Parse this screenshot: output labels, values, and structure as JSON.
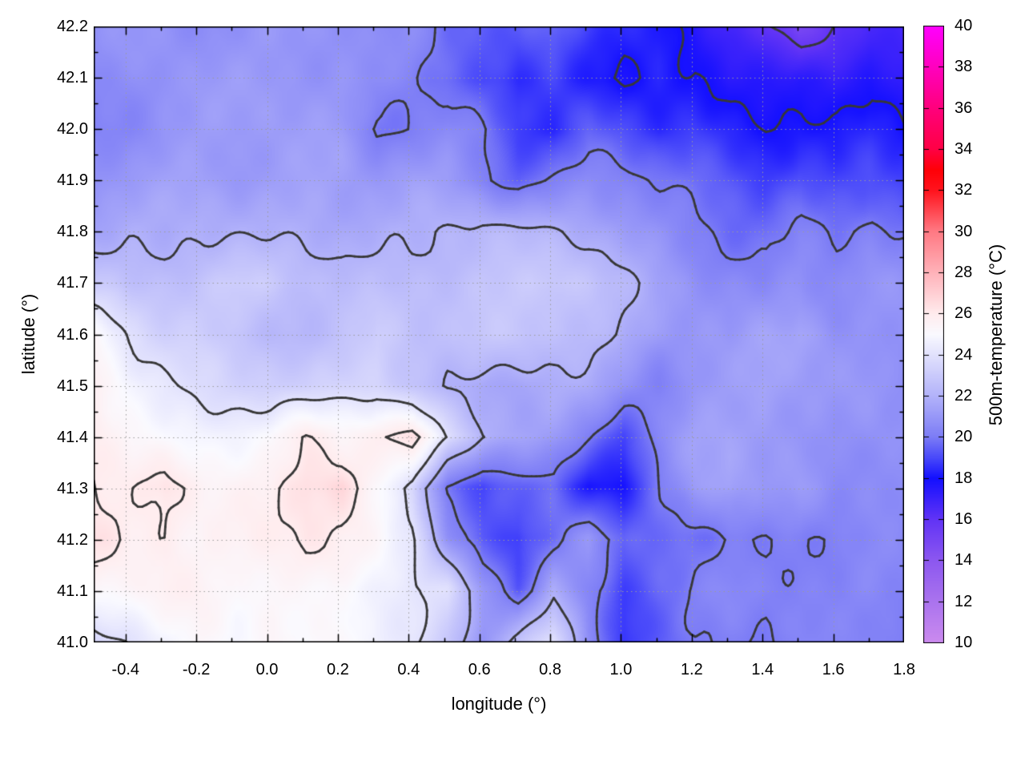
{
  "figure": {
    "xlabel": "longitude (°)",
    "ylabel": "latitude (°)",
    "colorbar_label": "500m-temperature (°C)"
  },
  "chart_data": {
    "type": "heatmap",
    "title": "",
    "xlabel": "longitude (°)",
    "ylabel": "latitude (°)",
    "colorbar_label": "500m-temperature (°C)",
    "xlim": [
      -0.49,
      1.8
    ],
    "ylim": [
      41.0,
      42.2
    ],
    "grid_on": true,
    "x_tick_values": [
      -0.4,
      -0.2,
      0.0,
      0.2,
      0.4,
      0.6,
      0.8,
      1.0,
      1.2,
      1.4,
      1.6,
      1.8
    ],
    "x_tick_labels": [
      "-0.4",
      "-0.2",
      "0.0",
      "0.2",
      "0.4",
      "0.6",
      "0.8",
      "1.0",
      "1.2",
      "1.4",
      "1.6",
      "1.8"
    ],
    "x_minor_step": 0.1,
    "y_tick_values": [
      41.0,
      41.1,
      41.2,
      41.3,
      41.4,
      41.5,
      41.6,
      41.7,
      41.8,
      41.9,
      42.0,
      42.1,
      42.2
    ],
    "y_tick_labels": [
      "41.0",
      "41.1",
      "41.2",
      "41.3",
      "41.4",
      "41.5",
      "41.6",
      "41.7",
      "41.8",
      "41.9",
      "42.0",
      "42.1",
      "42.2"
    ],
    "y_minor_step": 0.05,
    "colorbar": {
      "min": 10,
      "max": 40,
      "tick_values": [
        10,
        12,
        14,
        16,
        18,
        20,
        22,
        24,
        26,
        28,
        30,
        32,
        34,
        36,
        38,
        40
      ],
      "tick_labels": [
        "10",
        "12",
        "14",
        "16",
        "18",
        "20",
        "22",
        "24",
        "26",
        "28",
        "30",
        "32",
        "34",
        "36",
        "38",
        "40"
      ],
      "palette_stops": [
        {
          "t": 10,
          "color": "#cc8bee"
        },
        {
          "t": 12,
          "color": "#ab74ee"
        },
        {
          "t": 14,
          "color": "#8d58f0"
        },
        {
          "t": 16,
          "color": "#6234f6"
        },
        {
          "t": 18,
          "color": "#1410ff"
        },
        {
          "t": 19,
          "color": "#4a4afa"
        },
        {
          "t": 20,
          "color": "#7d7df6"
        },
        {
          "t": 22,
          "color": "#b3b3fa"
        },
        {
          "t": 24,
          "color": "#e2e2fd"
        },
        {
          "t": 25,
          "color": "#fafaff"
        },
        {
          "t": 26,
          "color": "#ffecee"
        },
        {
          "t": 28,
          "color": "#ffb3ba"
        },
        {
          "t": 30,
          "color": "#ff7a84"
        },
        {
          "t": 32,
          "color": "#ff141e"
        },
        {
          "t": 33,
          "color": "#ff0008"
        },
        {
          "t": 34,
          "color": "#ff0045"
        },
        {
          "t": 36,
          "color": "#ff007d"
        },
        {
          "t": 38,
          "color": "#ff00bf"
        },
        {
          "t": 40,
          "color": "#ff00ff"
        }
      ]
    },
    "contour_levels": [
      16,
      18,
      20,
      22,
      24,
      26
    ],
    "contour_color": "#383838",
    "grid_line_color": "#9a9a9a",
    "grid": {
      "lon": [
        -0.49,
        -0.39,
        -0.29,
        -0.19,
        -0.09,
        0.01,
        0.11,
        0.21,
        0.31,
        0.41,
        0.51,
        0.61,
        0.71,
        0.81,
        0.91,
        1.01,
        1.11,
        1.21,
        1.31,
        1.41,
        1.51,
        1.61,
        1.71,
        1.81
      ],
      "lat": [
        42.2,
        42.1,
        42.0,
        41.9,
        41.8,
        41.7,
        41.6,
        41.5,
        41.4,
        41.3,
        41.2,
        41.1,
        41.0
      ],
      "temperature": [
        [
          20.6,
          20.8,
          20.8,
          20.7,
          20.8,
          21.0,
          21.0,
          20.8,
          20.3,
          20.5,
          19.8,
          19.4,
          19.2,
          19.7,
          18.9,
          18.3,
          18.1,
          17.5,
          16.8,
          16.2,
          15.0,
          16.2,
          16.9,
          16.5
        ],
        [
          20.4,
          20.6,
          20.9,
          20.9,
          21.0,
          21.1,
          21.0,
          20.9,
          20.6,
          20.3,
          19.6,
          18.8,
          18.4,
          19.0,
          18.3,
          17.8,
          18.4,
          18.2,
          17.4,
          17.2,
          17.5,
          17.3,
          17.6,
          17.3
        ],
        [
          20.2,
          20.5,
          21.0,
          21.1,
          21.1,
          21.2,
          21.1,
          21.0,
          19.9,
          20.2,
          20.6,
          20.1,
          18.9,
          18.4,
          19.3,
          19.0,
          18.6,
          18.9,
          18.4,
          18.1,
          18.3,
          18.0,
          18.3,
          18.0
        ],
        [
          20.8,
          21.0,
          21.2,
          21.3,
          21.2,
          21.3,
          21.4,
          21.3,
          21.0,
          21.2,
          21.0,
          20.3,
          19.6,
          20.2,
          20.6,
          20.4,
          19.9,
          19.5,
          19.2,
          18.9,
          19.2,
          18.9,
          19.3,
          19.0
        ],
        [
          21.6,
          21.8,
          21.6,
          21.9,
          21.8,
          21.7,
          21.8,
          21.7,
          21.9,
          21.8,
          22.1,
          22.3,
          22.1,
          21.9,
          21.7,
          21.4,
          20.8,
          20.2,
          19.8,
          19.6,
          20.1,
          19.8,
          20.3,
          19.9
        ],
        [
          22.8,
          22.5,
          22.6,
          22.9,
          23.2,
          22.9,
          22.4,
          22.3,
          22.2,
          22.4,
          22.6,
          22.8,
          22.9,
          23.1,
          22.8,
          22.0,
          21.3,
          20.8,
          20.6,
          20.4,
          20.8,
          20.5,
          20.9,
          20.6
        ],
        [
          25.2,
          23.8,
          23.2,
          23.0,
          22.6,
          22.4,
          22.3,
          22.5,
          23.2,
          22.6,
          22.4,
          22.7,
          22.9,
          22.7,
          22.4,
          21.8,
          21.2,
          21.0,
          20.8,
          21.3,
          21.6,
          20.9,
          20.7,
          20.9
        ],
        [
          25.8,
          25.0,
          24.2,
          23.6,
          23.3,
          23.1,
          23.0,
          23.4,
          23.6,
          22.8,
          21.9,
          21.6,
          21.5,
          21.7,
          21.5,
          20.9,
          20.3,
          20.9,
          21.2,
          21.6,
          21.1,
          20.8,
          20.9,
          20.7
        ],
        [
          25.9,
          25.2,
          24.8,
          24.9,
          24.9,
          25.1,
          26.0,
          25.4,
          25.8,
          26.3,
          23.9,
          22.2,
          21.6,
          21.1,
          20.1,
          18.9,
          20.3,
          21.2,
          21.5,
          21.3,
          20.9,
          20.7,
          20.9,
          20.8
        ],
        [
          26.1,
          25.7,
          26.3,
          25.6,
          25.4,
          25.7,
          26.6,
          26.9,
          25.2,
          23.5,
          19.8,
          18.9,
          19.3,
          19.6,
          18.3,
          18.2,
          19.9,
          21.2,
          21.5,
          20.7,
          21.0,
          20.6,
          20.7,
          20.6
        ],
        [
          26.3,
          25.9,
          26.1,
          25.5,
          25.6,
          25.8,
          26.2,
          25.7,
          25.2,
          24.3,
          21.0,
          19.2,
          18.7,
          19.8,
          20.9,
          19.2,
          19.7,
          19.9,
          20.1,
          20.0,
          20.2,
          20.1,
          20.3,
          20.2
        ],
        [
          25.2,
          25.4,
          25.8,
          25.5,
          25.2,
          25.6,
          25.3,
          25.0,
          24.6,
          24.2,
          23.7,
          20.9,
          19.4,
          21.8,
          20.3,
          18.8,
          19.6,
          20.1,
          20.3,
          20.2,
          20.4,
          20.3,
          20.4,
          20.3
        ],
        [
          23.8,
          24.2,
          24.6,
          25.2,
          24.9,
          25.3,
          24.9,
          25.4,
          24.8,
          24.2,
          22.8,
          20.8,
          22.5,
          23.8,
          20.5,
          18.8,
          19.5,
          19.9,
          20.1,
          20.0,
          20.2,
          20.1,
          20.3,
          20.2
        ]
      ]
    }
  }
}
